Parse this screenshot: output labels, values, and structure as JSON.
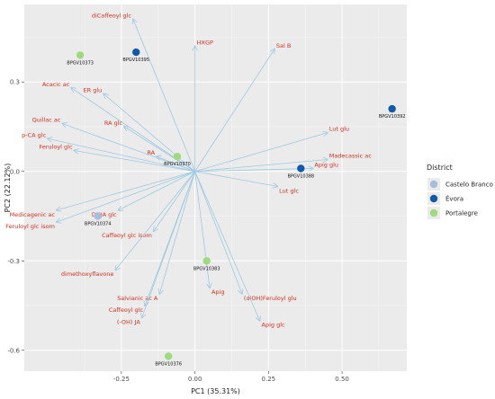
{
  "chart_data": {
    "type": "scatter",
    "subtype": "pca-biplot",
    "xlabel": "PC1 (35.31%)",
    "ylabel": "PC2 (22.12%)",
    "xlim": [
      -0.58,
      0.72
    ],
    "ylim": [
      -0.67,
      0.56
    ],
    "xticks": [
      -0.25,
      0.0,
      0.25,
      0.5
    ],
    "xtick_labels": [
      "-0.25",
      "0.00",
      "0.25",
      "0.50"
    ],
    "yticks": [
      -0.6,
      -0.3,
      0.0,
      0.3
    ],
    "ytick_labels": [
      "-0.6",
      "-0.3",
      "0.0",
      "0.3"
    ],
    "grid": true,
    "background": "#ebebeb",
    "arrow_color": "#9ecae1",
    "label_color": "#d7301f",
    "legend": {
      "title": "District",
      "position": "right",
      "entries": [
        {
          "label": "Castelo Branco",
          "color": "#a6bddb"
        },
        {
          "label": "Évora",
          "color": "#0f5ba8"
        },
        {
          "label": "Portalegre",
          "color": "#9edb7e"
        }
      ]
    },
    "loadings": [
      {
        "name": "diCaffeoyl glc",
        "x": -0.21,
        "y": 0.51
      },
      {
        "name": "HXGP",
        "x": 0.0,
        "y": 0.42
      },
      {
        "name": "Sal B",
        "x": 0.27,
        "y": 0.41
      },
      {
        "name": "Acacic ac",
        "x": -0.42,
        "y": 0.28
      },
      {
        "name": "ER glu",
        "x": -0.31,
        "y": 0.26
      },
      {
        "name": "RA glc",
        "x": -0.24,
        "y": 0.15
      },
      {
        "name": "Quillac ac",
        "x": -0.45,
        "y": 0.16
      },
      {
        "name": "p-CA glc",
        "x": -0.5,
        "y": 0.11
      },
      {
        "name": "Feruloyl glc",
        "x": -0.41,
        "y": 0.07
      },
      {
        "name": "RA",
        "x": -0.13,
        "y": 0.05
      },
      {
        "name": "Lut glu",
        "x": 0.45,
        "y": 0.13
      },
      {
        "name": "Madecassic ac",
        "x": 0.45,
        "y": 0.04
      },
      {
        "name": "Apig glu",
        "x": 0.4,
        "y": 0.01
      },
      {
        "name": "Lut glc",
        "x": 0.28,
        "y": -0.05
      },
      {
        "name": "Medicagenic ac",
        "x": -0.47,
        "y": -0.13
      },
      {
        "name": "Feruloyl glc isom",
        "x": -0.47,
        "y": -0.17
      },
      {
        "name": "DHJA glc",
        "x": -0.26,
        "y": -0.13
      },
      {
        "name": "Caffeoyl glc isom",
        "x": -0.14,
        "y": -0.2
      },
      {
        "name": "dimethoxyflavone",
        "x": -0.27,
        "y": -0.33
      },
      {
        "name": "Salvianic ac A",
        "x": -0.12,
        "y": -0.41
      },
      {
        "name": "Caffeoyl glc",
        "x": -0.17,
        "y": -0.45
      },
      {
        "name": "(-OH) JA",
        "x": -0.18,
        "y": -0.49
      },
      {
        "name": "Apig",
        "x": 0.05,
        "y": -0.39
      },
      {
        "name": "(diOH)Feruloyl glu",
        "x": 0.16,
        "y": -0.41
      },
      {
        "name": "Apig glc",
        "x": 0.22,
        "y": -0.5
      }
    ],
    "observations": [
      {
        "id": "BPGV10373",
        "x": -0.39,
        "y": 0.39,
        "district": "Portalegre"
      },
      {
        "id": "BPGV10395",
        "x": -0.2,
        "y": 0.4,
        "district": "Évora"
      },
      {
        "id": "BPGV10392",
        "x": 0.67,
        "y": 0.21,
        "district": "Évora"
      },
      {
        "id": "BPGV10370",
        "x": -0.06,
        "y": 0.05,
        "district": "Portalegre"
      },
      {
        "id": "BPGV10388",
        "x": 0.36,
        "y": 0.01,
        "district": "Évora"
      },
      {
        "id": "BPGV10374",
        "x": -0.33,
        "y": -0.15,
        "district": "Castelo Branco"
      },
      {
        "id": "BPGV10383",
        "x": 0.04,
        "y": -0.3,
        "district": "Portalegre"
      },
      {
        "id": "BPGV10376",
        "x": -0.09,
        "y": -0.62,
        "district": "Portalegre"
      }
    ]
  }
}
